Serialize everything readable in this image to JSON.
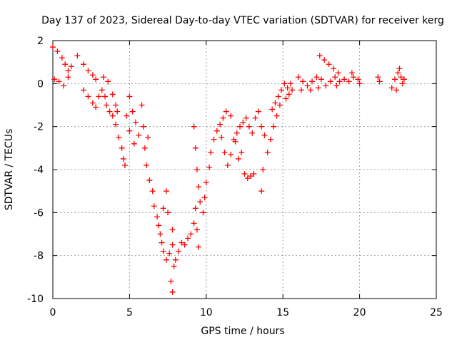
{
  "chart_data": {
    "type": "scatter",
    "title": "Day 137 of 2023, Sidereal Day-to-day VTEC variation (SDTVAR) for receiver kerg",
    "xlabel": "GPS time / hours",
    "ylabel": "SDTVAR / TECUs",
    "xlim": [
      0,
      25
    ],
    "ylim": [
      -10,
      2
    ],
    "x_ticks": [
      {
        "value": 0,
        "label": "0"
      },
      {
        "value": 5,
        "label": "5"
      },
      {
        "value": 10,
        "label": "10"
      },
      {
        "value": 15,
        "label": "15"
      },
      {
        "value": 20,
        "label": "20"
      },
      {
        "value": 25,
        "label": "25"
      }
    ],
    "y_ticks": [
      {
        "value": 2,
        "label": "2"
      },
      {
        "value": 0,
        "label": "0"
      },
      {
        "value": -2,
        "label": "-2"
      },
      {
        "value": -4,
        "label": "-4"
      },
      {
        "value": -6,
        "label": "-6"
      },
      {
        "value": -8,
        "label": "-8"
      },
      {
        "value": -10,
        "label": "-10"
      }
    ],
    "grid": true,
    "marker": "+",
    "color": "#ff0000",
    "series": [
      {
        "points": [
          [
            0.0,
            1.7
          ],
          [
            0.3,
            1.5
          ],
          [
            0.6,
            1.2
          ],
          [
            0.8,
            0.9
          ],
          [
            1.0,
            0.6
          ],
          [
            0.1,
            0.2
          ],
          [
            0.4,
            0.1
          ],
          [
            0.7,
            -0.1
          ],
          [
            1.0,
            0.3
          ],
          [
            1.2,
            0.8
          ],
          [
            1.6,
            1.3
          ],
          [
            2.0,
            0.9
          ],
          [
            2.3,
            0.6
          ],
          [
            2.6,
            0.4
          ],
          [
            2.8,
            0.2
          ],
          [
            2.0,
            -0.3
          ],
          [
            2.3,
            -0.6
          ],
          [
            2.6,
            -0.9
          ],
          [
            2.8,
            -1.1
          ],
          [
            3.0,
            -0.6
          ],
          [
            3.2,
            -0.3
          ],
          [
            3.4,
            -0.6
          ],
          [
            3.5,
            -1.0
          ],
          [
            3.7,
            -1.3
          ],
          [
            3.9,
            -1.5
          ],
          [
            4.1,
            -1.9
          ],
          [
            4.3,
            -2.5
          ],
          [
            4.5,
            -3.0
          ],
          [
            4.6,
            -3.5
          ],
          [
            4.7,
            -3.8
          ],
          [
            3.3,
            0.3
          ],
          [
            3.6,
            0.1
          ],
          [
            3.9,
            -0.5
          ],
          [
            4.1,
            -1.0
          ],
          [
            4.2,
            -1.3
          ],
          [
            4.8,
            -1.5
          ],
          [
            5.0,
            -2.2
          ],
          [
            5.2,
            -1.3
          ],
          [
            5.0,
            -0.6
          ],
          [
            5.4,
            -1.8
          ],
          [
            5.3,
            -2.8
          ],
          [
            5.6,
            -2.4
          ],
          [
            5.8,
            -1.0
          ],
          [
            5.9,
            -2.0
          ],
          [
            6.0,
            -3.0
          ],
          [
            6.1,
            -3.8
          ],
          [
            6.2,
            -2.5
          ],
          [
            6.3,
            -4.5
          ],
          [
            6.5,
            -5.0
          ],
          [
            6.6,
            -5.7
          ],
          [
            6.8,
            -6.2
          ],
          [
            6.9,
            -6.6
          ],
          [
            7.0,
            -7.0
          ],
          [
            7.1,
            -7.4
          ],
          [
            7.2,
            -7.8
          ],
          [
            7.4,
            -8.2
          ],
          [
            7.6,
            -7.9
          ],
          [
            7.8,
            -7.5
          ],
          [
            7.2,
            -5.8
          ],
          [
            7.4,
            -5.0
          ],
          [
            7.5,
            -6.0
          ],
          [
            7.8,
            -6.8
          ],
          [
            7.9,
            -8.5
          ],
          [
            7.7,
            -9.2
          ],
          [
            7.8,
            -9.7
          ],
          [
            8.0,
            -8.2
          ],
          [
            8.2,
            -7.8
          ],
          [
            8.4,
            -7.4
          ],
          [
            8.6,
            -7.5
          ],
          [
            8.8,
            -7.2
          ],
          [
            9.0,
            -7.0
          ],
          [
            9.2,
            -6.5
          ],
          [
            9.3,
            -5.8
          ],
          [
            9.4,
            -6.8
          ],
          [
            9.5,
            -7.6
          ],
          [
            9.2,
            -2.0
          ],
          [
            9.3,
            -3.0
          ],
          [
            9.4,
            -4.0
          ],
          [
            9.5,
            -4.8
          ],
          [
            9.6,
            -5.5
          ],
          [
            9.8,
            -6.0
          ],
          [
            9.9,
            -5.3
          ],
          [
            10.0,
            -4.6
          ],
          [
            10.2,
            -3.9
          ],
          [
            10.3,
            -3.2
          ],
          [
            10.5,
            -2.6
          ],
          [
            10.7,
            -2.2
          ],
          [
            10.9,
            -1.9
          ],
          [
            11.0,
            -2.5
          ],
          [
            11.2,
            -3.2
          ],
          [
            11.4,
            -3.8
          ],
          [
            11.6,
            -3.3
          ],
          [
            11.8,
            -2.6
          ],
          [
            12.0,
            -2.3
          ],
          [
            12.2,
            -2.0
          ],
          [
            11.1,
            -1.6
          ],
          [
            11.3,
            -1.3
          ],
          [
            11.6,
            -1.5
          ],
          [
            11.9,
            -2.7
          ],
          [
            12.1,
            -3.5
          ],
          [
            12.3,
            -3.2
          ],
          [
            12.5,
            -4.2
          ],
          [
            12.7,
            -4.4
          ],
          [
            12.9,
            -4.3
          ],
          [
            13.1,
            -4.2
          ],
          [
            12.4,
            -1.8
          ],
          [
            12.6,
            -1.6
          ],
          [
            12.8,
            -2.0
          ],
          [
            13.0,
            -2.3
          ],
          [
            13.2,
            -1.6
          ],
          [
            13.4,
            -1.3
          ],
          [
            13.6,
            -2.0
          ],
          [
            13.8,
            -2.4
          ],
          [
            13.7,
            -4.0
          ],
          [
            13.6,
            -5.0
          ],
          [
            14.0,
            -3.2
          ],
          [
            14.2,
            -2.6
          ],
          [
            14.4,
            -2.0
          ],
          [
            14.6,
            -1.5
          ],
          [
            14.8,
            -1.0
          ],
          [
            14.3,
            -1.2
          ],
          [
            14.5,
            -0.9
          ],
          [
            14.7,
            -0.6
          ],
          [
            14.9,
            -0.3
          ],
          [
            15.1,
            0.0
          ],
          [
            15.3,
            -0.2
          ],
          [
            15.5,
            0.0
          ],
          [
            15.6,
            -0.3
          ],
          [
            15.4,
            -0.5
          ],
          [
            15.2,
            -0.7
          ],
          [
            16.0,
            0.3
          ],
          [
            16.3,
            0.1
          ],
          [
            16.6,
            -0.1
          ],
          [
            16.9,
            0.1
          ],
          [
            17.2,
            0.3
          ],
          [
            17.5,
            0.2
          ],
          [
            17.8,
            -0.1
          ],
          [
            18.1,
            0.1
          ],
          [
            18.4,
            0.3
          ],
          [
            18.7,
            0.1
          ],
          [
            17.4,
            1.3
          ],
          [
            17.7,
            1.1
          ],
          [
            18.0,
            0.9
          ],
          [
            18.3,
            0.7
          ],
          [
            18.6,
            0.5
          ],
          [
            19.0,
            0.2
          ],
          [
            19.3,
            0.1
          ],
          [
            19.6,
            0.3
          ],
          [
            19.9,
            0.2
          ],
          [
            20.0,
            0.0
          ],
          [
            16.2,
            -0.3
          ],
          [
            16.8,
            -0.3
          ],
          [
            17.3,
            -0.2
          ],
          [
            18.5,
            -0.1
          ],
          [
            19.5,
            0.5
          ],
          [
            21.2,
            0.3
          ],
          [
            21.3,
            0.1
          ],
          [
            22.1,
            -0.2
          ],
          [
            22.3,
            0.2
          ],
          [
            22.5,
            0.5
          ],
          [
            22.6,
            0.7
          ],
          [
            22.7,
            0.3
          ],
          [
            22.8,
            0.0
          ],
          [
            22.9,
            0.2
          ],
          [
            22.4,
            -0.3
          ]
        ]
      }
    ]
  }
}
